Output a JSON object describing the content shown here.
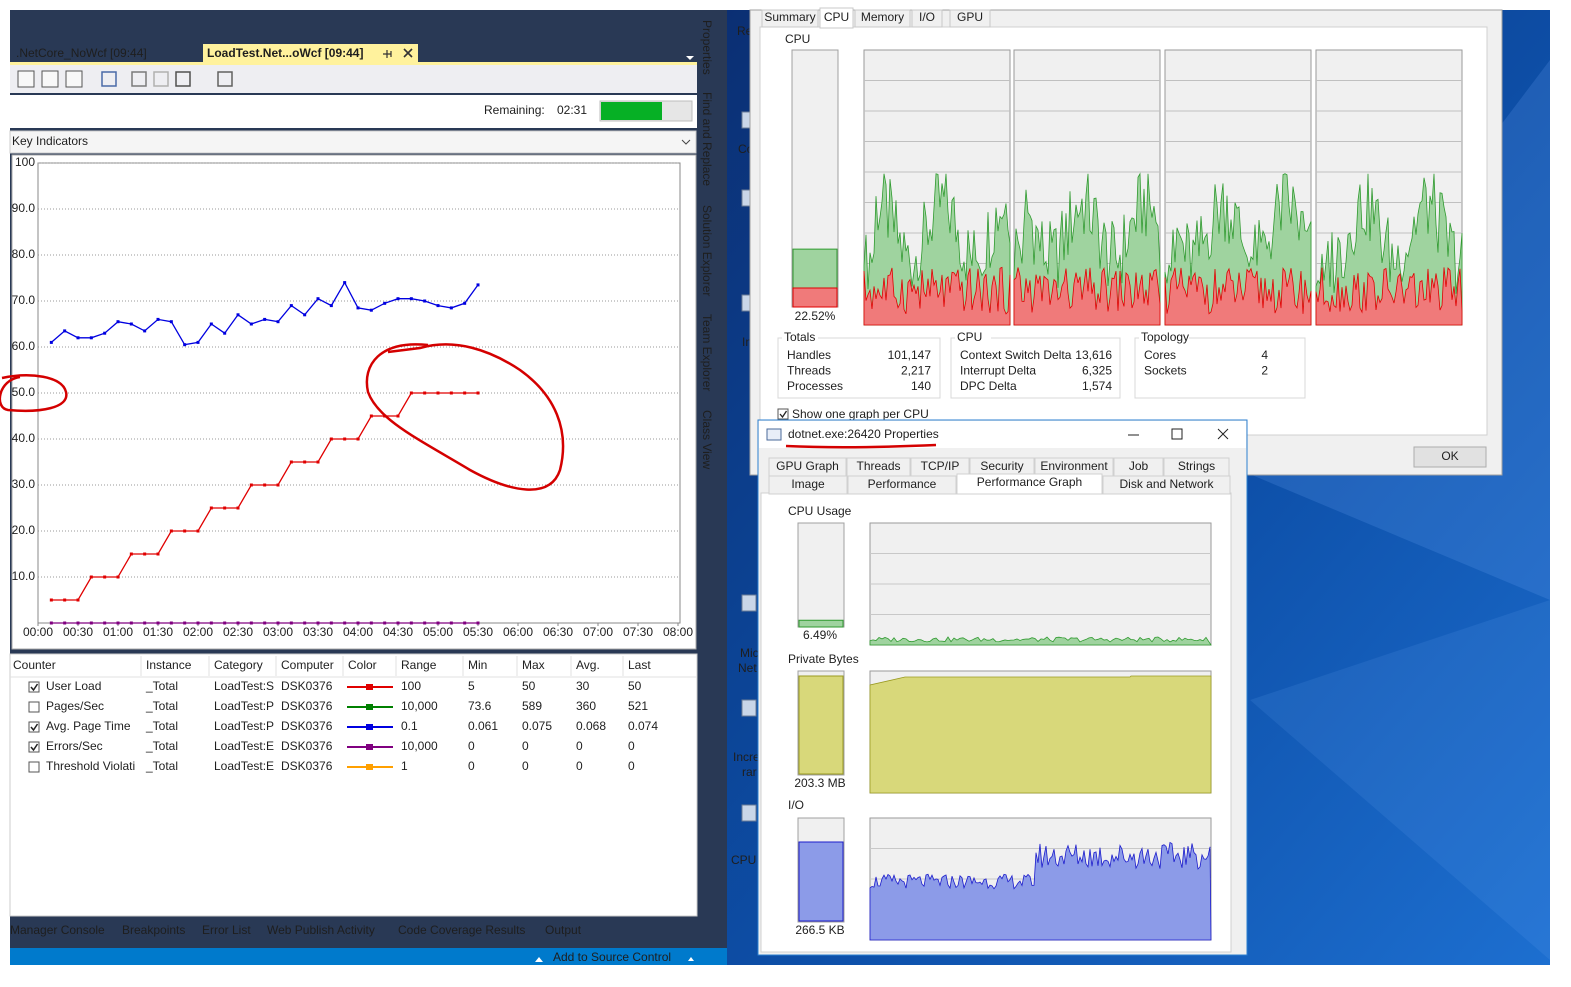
{
  "vs": {
    "doc_tabs": [
      ".NetCore_NoWcf [09:44]",
      "LoadTest.Net...oWcf [09:44]"
    ],
    "remaining_label": "Remaining:",
    "remaining_value": "02:31",
    "panel_title": "Key Indicators",
    "chart": {
      "type": "line",
      "x": [
        10,
        20,
        30,
        40,
        50,
        60,
        70,
        80,
        90,
        100,
        110,
        120,
        130,
        140,
        150,
        160,
        170,
        180,
        190,
        200,
        210,
        220,
        230,
        240,
        250,
        260,
        270,
        280,
        290,
        300,
        310,
        320,
        330
      ],
      "xlim": [
        0,
        480
      ],
      "xticks": [
        {
          "value": 0,
          "label": "00:00"
        },
        {
          "value": 30,
          "label": "00:30"
        },
        {
          "value": 60,
          "label": "01:00"
        },
        {
          "value": 90,
          "label": "01:30"
        },
        {
          "value": 120,
          "label": "02:00"
        },
        {
          "value": 150,
          "label": "02:30"
        },
        {
          "value": 180,
          "label": "03:00"
        },
        {
          "value": 210,
          "label": "03:30"
        },
        {
          "value": 240,
          "label": "04:00"
        },
        {
          "value": 270,
          "label": "04:30"
        },
        {
          "value": 300,
          "label": "05:00"
        },
        {
          "value": 330,
          "label": "05:30"
        },
        {
          "value": 360,
          "label": "06:00"
        },
        {
          "value": 390,
          "label": "06:30"
        },
        {
          "value": 420,
          "label": "07:00"
        },
        {
          "value": 450,
          "label": "07:30"
        },
        {
          "value": 480,
          "label": "08:00"
        }
      ],
      "ylim": [
        0,
        100
      ],
      "yticks": [
        {
          "value": 10,
          "label": "10.0"
        },
        {
          "value": 20,
          "label": "20.0"
        },
        {
          "value": 30,
          "label": "30.0"
        },
        {
          "value": 40,
          "label": "40.0"
        },
        {
          "value": 50,
          "label": "50.0"
        },
        {
          "value": 60,
          "label": "60.0"
        },
        {
          "value": 70,
          "label": "70.0"
        },
        {
          "value": 80,
          "label": "80.0"
        },
        {
          "value": 90,
          "label": "90.0"
        },
        100
      ],
      "grid": true,
      "series": [
        {
          "color": "#e00000",
          "values": [
            5,
            5,
            5,
            10,
            10,
            10,
            15,
            15,
            15,
            20,
            20,
            20,
            25,
            25,
            25,
            30,
            30,
            30,
            35,
            35,
            35,
            40,
            40,
            40,
            45,
            45,
            45,
            50,
            50,
            50,
            50,
            50,
            50
          ]
        },
        {
          "color": "#0000e0",
          "values": [
            61,
            63.5,
            62,
            62,
            63,
            65.5,
            65,
            63.5,
            66,
            65.5,
            60.5,
            61,
            65,
            63,
            67,
            65,
            66,
            65.5,
            69,
            67,
            70.5,
            69,
            74,
            68.5,
            68,
            69.5,
            70.5,
            70.5,
            70,
            69,
            68.5,
            69.5,
            73.5
          ]
        },
        {
          "color": "#800080",
          "values": [
            0,
            0,
            0,
            0,
            0,
            0,
            0,
            0,
            0,
            0,
            0,
            0,
            0,
            0,
            0,
            0,
            0,
            0,
            0,
            0,
            0,
            0,
            0,
            0,
            0,
            0,
            0,
            0,
            0,
            0,
            0,
            0,
            0
          ]
        }
      ]
    },
    "table": {
      "columns": [
        "Counter",
        "Instance",
        "Category",
        "Computer",
        "Color",
        "Range",
        "Min",
        "Max",
        "Avg.",
        "Last"
      ],
      "rows": [
        {
          "checked": true,
          "color": "#e00000",
          "cells": [
            "User Load",
            "_Total",
            "LoadTest:S",
            "DSK0376",
            "100",
            "5",
            "50",
            "30",
            "50"
          ]
        },
        {
          "checked": false,
          "color": "#008000",
          "cells": [
            "Pages/Sec",
            "_Total",
            "LoadTest:P",
            "DSK0376",
            "10,000",
            "73.6",
            "589",
            "360",
            "521"
          ]
        },
        {
          "checked": true,
          "color": "#0000e0",
          "cells": [
            "Avg. Page Time",
            "_Total",
            "LoadTest:P",
            "DSK0376",
            "0.1",
            "0.061",
            "0.075",
            "0.068",
            "0.074"
          ]
        },
        {
          "checked": true,
          "color": "#800080",
          "cells": [
            "Errors/Sec",
            "_Total",
            "LoadTest:E",
            "DSK0376",
            "10,000",
            "0",
            "0",
            "0",
            "0"
          ]
        },
        {
          "checked": false,
          "color": "#ffa000",
          "cells": [
            "Threshold Violati",
            "_Total",
            "LoadTest:E",
            "DSK0376",
            "1",
            "0",
            "0",
            "0",
            "0"
          ]
        }
      ]
    },
    "tool_tabs": [
      "Manager Console",
      "Breakpoints",
      "Error List",
      "Web Publish Activity",
      "Code Coverage Results",
      "Output"
    ],
    "status": "Add to Source Control"
  },
  "side_tabs": [
    "Properties",
    "Find and Replace",
    "Solution Explorer",
    "Team Explorer",
    "Class View"
  ],
  "desktop_labels": [
    "Re",
    "Co",
    "In",
    "Mic",
    "Net",
    "Incre",
    "rar",
    "CPUI"
  ],
  "sysinfo": {
    "tabs": [
      "Summary",
      "CPU",
      "Memory",
      "I/O",
      "GPU"
    ],
    "active_tab": 1,
    "cpu_label": "CPU",
    "cpu_usage": {
      "value": 22.52,
      "label": "22.52%"
    },
    "groups": [
      {
        "title": "Totals",
        "rows": [
          [
            "Handles",
            "101,147"
          ],
          [
            "Threads",
            "2,217"
          ],
          [
            "Processes",
            "140"
          ]
        ]
      },
      {
        "title": "CPU",
        "rows": [
          [
            "Context Switch Delta",
            "13,616"
          ],
          [
            "Interrupt Delta",
            "6,325"
          ],
          [
            "DPC Delta",
            "1,574"
          ]
        ]
      },
      {
        "title": "Topology",
        "rows": [
          [
            "Cores",
            "4"
          ],
          [
            "Sockets",
            "2"
          ]
        ]
      }
    ],
    "show_one_graph": "Show one graph per CPU",
    "ok": "OK"
  },
  "props": {
    "title": "dotnet.exe:26420 Properties",
    "tabs_row1": [
      "GPU Graph",
      "Threads",
      "TCP/IP",
      "Security",
      "Environment",
      "Job",
      "Strings"
    ],
    "tabs_row2": [
      "Image",
      "Performance",
      "Performance Graph",
      "Disk and Network"
    ],
    "active_tab_row2": 2,
    "sections": [
      {
        "label": "CPU Usage",
        "usage": {
          "value": 6.49,
          "label": "6.49%"
        }
      },
      {
        "label": "Private Bytes",
        "value_label": "203.3 MB"
      },
      {
        "label": "I/O",
        "value_label": "266.5 KB"
      }
    ]
  }
}
